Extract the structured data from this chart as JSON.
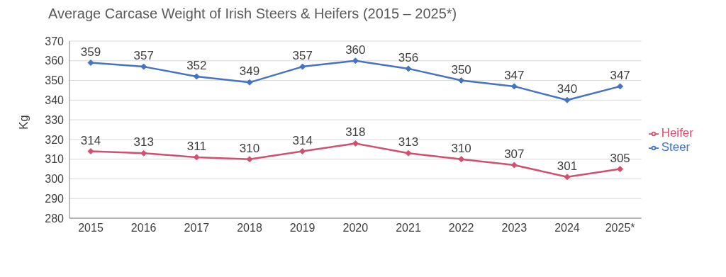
{
  "chart_data": {
    "type": "line",
    "title": "Average Carcase Weight of Irish Steers & Heifers (2015 – 2025*)",
    "ylabel": "Kg",
    "categories": [
      "2015",
      "2016",
      "2017",
      "2018",
      "2019",
      "2020",
      "2021",
      "2022",
      "2023",
      "2024",
      "2025*"
    ],
    "series": [
      {
        "name": "Steer",
        "color": "#4472c4",
        "values": [
          359,
          357,
          352,
          349,
          357,
          360,
          356,
          350,
          347,
          340,
          347
        ]
      },
      {
        "name": "Heifer",
        "color": "#d0506e",
        "values": [
          314,
          313,
          311,
          310,
          314,
          318,
          313,
          310,
          307,
          301,
          305
        ]
      }
    ],
    "ylim": [
      280,
      370
    ],
    "yticks": [
      280,
      290,
      300,
      310,
      320,
      330,
      340,
      350,
      360,
      370
    ],
    "grid": "y",
    "legend": "right",
    "marker": "diamond",
    "line_style": "solid",
    "data_labels": true
  }
}
